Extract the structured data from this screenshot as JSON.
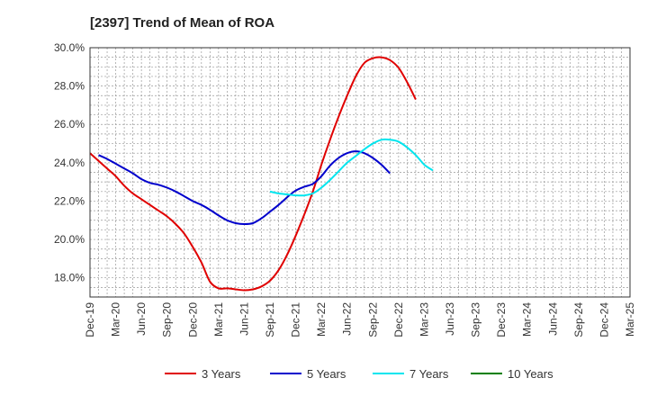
{
  "chart_data": {
    "type": "line",
    "title": "[2397]  Trend of Mean of ROA",
    "xlabel": "",
    "ylabel": "",
    "ylim": [
      17.0,
      30.0
    ],
    "grid": true,
    "legend_position": "bottom",
    "x_ticks": [
      "Dec-19",
      "Mar-20",
      "Jun-20",
      "Sep-20",
      "Dec-20",
      "Mar-21",
      "Jun-21",
      "Sep-21",
      "Dec-21",
      "Mar-22",
      "Jun-22",
      "Sep-22",
      "Dec-22",
      "Mar-23",
      "Jun-23",
      "Sep-23",
      "Dec-23",
      "Mar-24",
      "Jun-24",
      "Sep-24",
      "Dec-24",
      "Mar-25"
    ],
    "y_ticks": [
      18.0,
      20.0,
      22.0,
      24.0,
      26.0,
      28.0,
      30.0
    ],
    "y_tick_labels": [
      "18.0%",
      "20.0%",
      "22.0%",
      "24.0%",
      "26.0%",
      "28.0%",
      "30.0%"
    ],
    "series": [
      {
        "name": "3 Years",
        "color": "#e00000",
        "values": [
          24.5,
          24.1,
          23.7,
          23.3,
          22.8,
          22.4,
          22.1,
          21.8,
          21.5,
          21.2,
          20.8,
          20.3,
          19.6,
          18.8,
          17.8,
          17.45,
          17.45,
          17.4,
          17.35,
          17.4,
          17.55,
          17.85,
          18.4,
          19.2,
          20.2,
          21.3,
          22.5,
          23.9,
          25.2,
          26.4,
          27.5,
          28.5,
          29.2,
          29.45,
          29.5,
          29.35,
          28.95,
          28.2,
          27.3
        ]
      },
      {
        "name": "5 Years",
        "color": "#0000cc",
        "values": [
          null,
          24.4,
          24.2,
          23.95,
          23.7,
          23.45,
          23.15,
          22.95,
          22.85,
          22.7,
          22.5,
          22.25,
          22.0,
          21.8,
          21.55,
          21.25,
          21.0,
          20.85,
          20.8,
          20.85,
          21.1,
          21.45,
          21.8,
          22.2,
          22.55,
          22.75,
          22.9,
          23.3,
          23.85,
          24.25,
          24.5,
          24.6,
          24.5,
          24.25,
          23.9,
          23.45
        ]
      },
      {
        "name": "7 Years",
        "color": "#00e5ee",
        "values": [
          null,
          null,
          null,
          null,
          null,
          null,
          null,
          null,
          null,
          null,
          null,
          null,
          null,
          null,
          null,
          null,
          null,
          null,
          null,
          null,
          null,
          22.5,
          22.4,
          22.35,
          22.3,
          22.3,
          22.4,
          22.7,
          23.1,
          23.55,
          24.0,
          24.35,
          24.7,
          25.0,
          25.2,
          25.2,
          25.1,
          24.8,
          24.4,
          23.9,
          23.6
        ]
      },
      {
        "name": "10 Years",
        "color": "#008000",
        "values": []
      }
    ]
  }
}
